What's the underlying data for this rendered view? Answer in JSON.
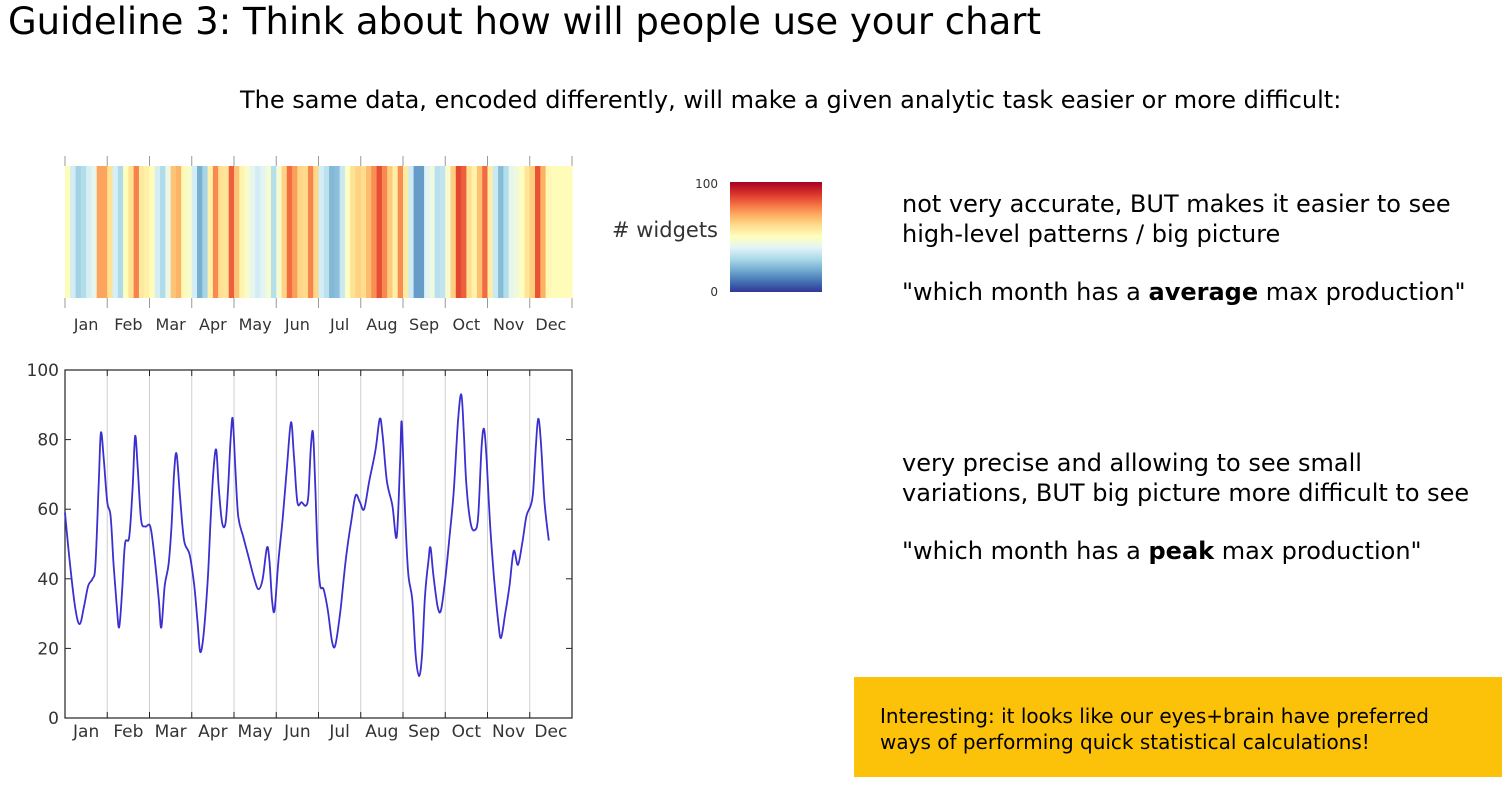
{
  "slide": {
    "title": "Guideline 3: Think about how will people use your chart",
    "subtitle": "The same data, encoded differently, will make a given analytic task easier or more difficult:",
    "note_heatmap": {
      "line1": "not very accurate, BUT makes it easier to see",
      "line2": "high-level patterns / big picture",
      "q_pre": "\"which month has a ",
      "q_bold": "average",
      "q_post": " max production\""
    },
    "note_line": {
      "line1": "very precise and allowing to see small",
      "line2": "variations, BUT big picture more difficult to see",
      "q_pre": "\"which month has a ",
      "q_bold": "peak",
      "q_post": " max production\""
    },
    "callout": {
      "line1": "Interesting: it looks like our eyes+brain have preferred",
      "line2": "ways of performing quick statistical calculations!"
    }
  },
  "colors": {
    "line": "#3b2fd0",
    "callout_bg": "#fbc209",
    "colormap": [
      "#313695",
      "#4575b4",
      "#74add1",
      "#abd9e9",
      "#e0f3f8",
      "#ffffbf",
      "#fee090",
      "#fdae61",
      "#f46d43",
      "#d73027",
      "#a50026"
    ]
  },
  "chart_data": [
    {
      "type": "heatmap",
      "colorbar": {
        "label": "# widgets",
        "min": 0,
        "max": 100,
        "tick_labels": [
          "100",
          "0"
        ]
      },
      "month_labels": [
        "Jan",
        "Feb",
        "Mar",
        "Apr",
        "May",
        "Jun",
        "Jul",
        "Aug",
        "Sep",
        "Oct",
        "Nov",
        "Dec"
      ]
    },
    {
      "type": "line",
      "ylim": [
        0,
        100
      ],
      "yticks": [
        0,
        20,
        40,
        60,
        80,
        100
      ],
      "month_labels": [
        "Jan",
        "Feb",
        "Mar",
        "Apr",
        "May",
        "Jun",
        "Jul",
        "Aug",
        "Sep",
        "Oct",
        "Nov",
        "Dec"
      ],
      "x_range": [
        0,
        12
      ],
      "points": [
        [
          0.0,
          59
        ],
        [
          0.12,
          44
        ],
        [
          0.25,
          31
        ],
        [
          0.35,
          27
        ],
        [
          0.45,
          32
        ],
        [
          0.55,
          38
        ],
        [
          0.65,
          40
        ],
        [
          0.72,
          44
        ],
        [
          0.8,
          68
        ],
        [
          0.85,
          82
        ],
        [
          0.92,
          74
        ],
        [
          1.0,
          62
        ],
        [
          1.08,
          58
        ],
        [
          1.15,
          44
        ],
        [
          1.22,
          33
        ],
        [
          1.28,
          26
        ],
        [
          1.35,
          36
        ],
        [
          1.42,
          50
        ],
        [
          1.52,
          52
        ],
        [
          1.6,
          66
        ],
        [
          1.66,
          81
        ],
        [
          1.72,
          72
        ],
        [
          1.8,
          57
        ],
        [
          1.9,
          55
        ],
        [
          2.02,
          55
        ],
        [
          2.12,
          46
        ],
        [
          2.22,
          34
        ],
        [
          2.28,
          26
        ],
        [
          2.36,
          38
        ],
        [
          2.45,
          44
        ],
        [
          2.52,
          55
        ],
        [
          2.58,
          70
        ],
        [
          2.64,
          76
        ],
        [
          2.72,
          64
        ],
        [
          2.82,
          51
        ],
        [
          2.95,
          47
        ],
        [
          3.06,
          38
        ],
        [
          3.14,
          27
        ],
        [
          3.2,
          19
        ],
        [
          3.28,
          24
        ],
        [
          3.38,
          40
        ],
        [
          3.45,
          58
        ],
        [
          3.52,
          72
        ],
        [
          3.58,
          77
        ],
        [
          3.64,
          66
        ],
        [
          3.72,
          56
        ],
        [
          3.8,
          56
        ],
        [
          3.86,
          66
        ],
        [
          3.92,
          80
        ],
        [
          3.97,
          86
        ],
        [
          4.03,
          72
        ],
        [
          4.1,
          58
        ],
        [
          4.22,
          52
        ],
        [
          4.35,
          46
        ],
        [
          4.48,
          40
        ],
        [
          4.58,
          37
        ],
        [
          4.68,
          40
        ],
        [
          4.78,
          49
        ],
        [
          4.84,
          45
        ],
        [
          4.9,
          34
        ],
        [
          4.96,
          31
        ],
        [
          5.05,
          45
        ],
        [
          5.15,
          57
        ],
        [
          5.26,
          73
        ],
        [
          5.35,
          85
        ],
        [
          5.42,
          75
        ],
        [
          5.5,
          62
        ],
        [
          5.6,
          62
        ],
        [
          5.7,
          61
        ],
        [
          5.76,
          64
        ],
        [
          5.82,
          78
        ],
        [
          5.87,
          82
        ],
        [
          5.92,
          68
        ],
        [
          5.98,
          47
        ],
        [
          6.04,
          38
        ],
        [
          6.12,
          37
        ],
        [
          6.22,
          31
        ],
        [
          6.32,
          22
        ],
        [
          6.4,
          21
        ],
        [
          6.52,
          31
        ],
        [
          6.65,
          46
        ],
        [
          6.78,
          57
        ],
        [
          6.88,
          64
        ],
        [
          6.98,
          62
        ],
        [
          7.08,
          60
        ],
        [
          7.2,
          68
        ],
        [
          7.35,
          77
        ],
        [
          7.45,
          86
        ],
        [
          7.52,
          81
        ],
        [
          7.62,
          68
        ],
        [
          7.75,
          61
        ],
        [
          7.85,
          52
        ],
        [
          7.93,
          73
        ],
        [
          7.97,
          85
        ],
        [
          8.04,
          62
        ],
        [
          8.12,
          42
        ],
        [
          8.22,
          34
        ],
        [
          8.3,
          18
        ],
        [
          8.38,
          12
        ],
        [
          8.45,
          18
        ],
        [
          8.52,
          35
        ],
        [
          8.6,
          45
        ],
        [
          8.65,
          49
        ],
        [
          8.72,
          41
        ],
        [
          8.82,
          32
        ],
        [
          8.9,
          31
        ],
        [
          9.0,
          40
        ],
        [
          9.1,
          52
        ],
        [
          9.2,
          65
        ],
        [
          9.3,
          85
        ],
        [
          9.38,
          93
        ],
        [
          9.44,
          82
        ],
        [
          9.5,
          67
        ],
        [
          9.6,
          56
        ],
        [
          9.7,
          54
        ],
        [
          9.78,
          58
        ],
        [
          9.86,
          78
        ],
        [
          9.92,
          83
        ],
        [
          9.98,
          74
        ],
        [
          10.06,
          56
        ],
        [
          10.15,
          41
        ],
        [
          10.25,
          28
        ],
        [
          10.32,
          23
        ],
        [
          10.42,
          30
        ],
        [
          10.52,
          38
        ],
        [
          10.62,
          48
        ],
        [
          10.72,
          44
        ],
        [
          10.82,
          50
        ],
        [
          10.92,
          58
        ],
        [
          11.02,
          61
        ],
        [
          11.08,
          65
        ],
        [
          11.15,
          79
        ],
        [
          11.2,
          86
        ],
        [
          11.26,
          80
        ],
        [
          11.35,
          62
        ],
        [
          11.45,
          51
        ]
      ]
    }
  ]
}
